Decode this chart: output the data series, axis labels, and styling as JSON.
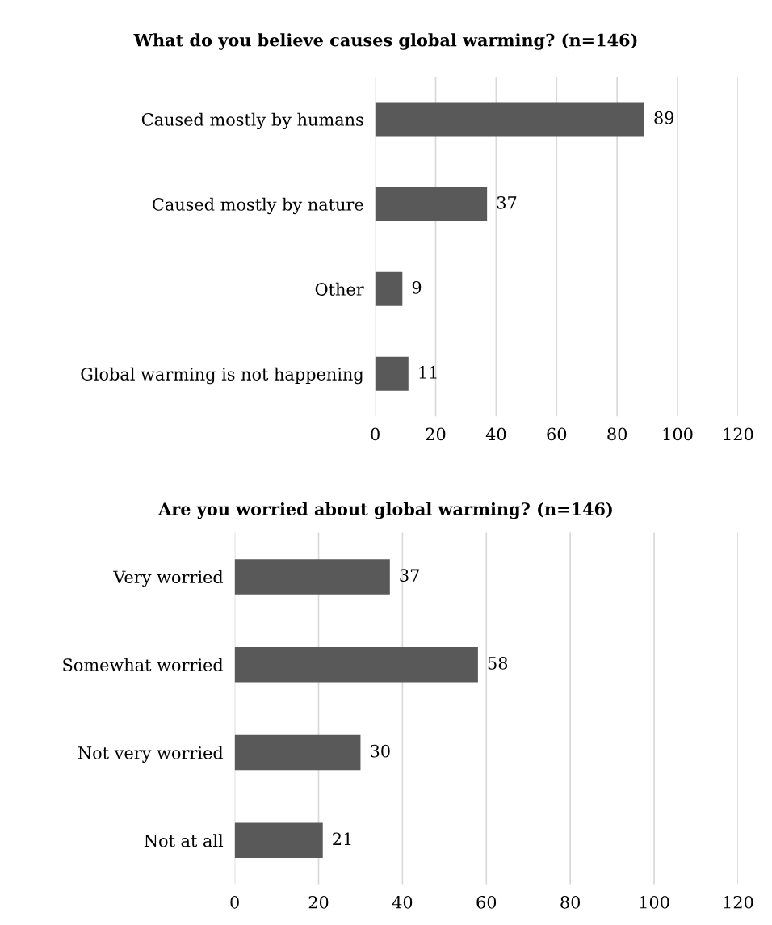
{
  "chart_data": [
    {
      "type": "bar",
      "orientation": "horizontal",
      "title": "What do you believe causes global warming? (n=146)",
      "categories": [
        "Caused mostly by humans",
        "Caused mostly by nature",
        "Other",
        "Global warming is not happening"
      ],
      "values": [
        89,
        37,
        9,
        11
      ],
      "color": "#595959",
      "xlim": [
        0,
        120
      ],
      "xticks": [
        0,
        20,
        40,
        60,
        80,
        100,
        120
      ],
      "grid": "x",
      "data_labels": true
    },
    {
      "type": "bar",
      "orientation": "horizontal",
      "title": "Are you worried about global warming? (n=146)",
      "categories": [
        "Very worried",
        "Somewhat worried",
        "Not very worried",
        "Not at all"
      ],
      "values": [
        37,
        58,
        30,
        21
      ],
      "color": "#595959",
      "xlim": [
        0,
        120
      ],
      "xticks": [
        0,
        20,
        40,
        60,
        80,
        100,
        120
      ],
      "grid": "x",
      "data_labels": true
    }
  ]
}
